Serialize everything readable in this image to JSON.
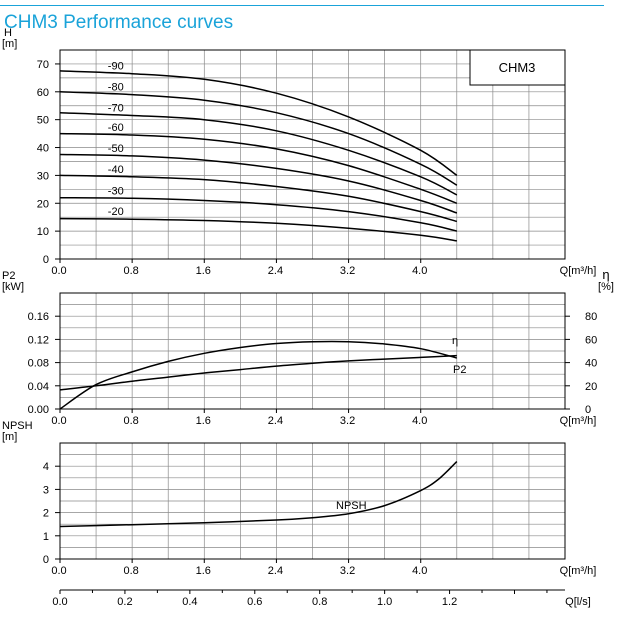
{
  "page": {
    "title": "CHM3 Performance curves",
    "model_box": "CHM3",
    "accent_color": "#1aa3d9"
  },
  "chart_data": [
    {
      "type": "line",
      "name": "head",
      "ylabel": "H",
      "yunit": "[m]",
      "xlabel": "Q[m³/h]",
      "xlim": [
        0,
        5.6
      ],
      "ylim": [
        0,
        75
      ],
      "x_ticks": [
        0.0,
        0.8,
        1.6,
        2.4,
        3.2,
        4.0
      ],
      "y_ticks": [
        0,
        10,
        20,
        30,
        40,
        50,
        60,
        70
      ],
      "grid": true,
      "legend": "top-right box",
      "series": [
        {
          "name": "-90",
          "points": [
            [
              0,
              67.5
            ],
            [
              0.8,
              66.5
            ],
            [
              1.6,
              64.5
            ],
            [
              2.4,
              59.5
            ],
            [
              3.2,
              51
            ],
            [
              4.0,
              39
            ],
            [
              4.4,
              30
            ]
          ]
        },
        {
          "name": "-80",
          "points": [
            [
              0,
              60
            ],
            [
              0.8,
              59
            ],
            [
              1.6,
              57
            ],
            [
              2.4,
              52.5
            ],
            [
              3.2,
              45
            ],
            [
              4.0,
              34
            ],
            [
              4.4,
              26.5
            ]
          ]
        },
        {
          "name": "-70",
          "points": [
            [
              0,
              52.5
            ],
            [
              0.8,
              51.5
            ],
            [
              1.6,
              50
            ],
            [
              2.4,
              46
            ],
            [
              3.2,
              39
            ],
            [
              4.0,
              29.5
            ],
            [
              4.4,
              23
            ]
          ]
        },
        {
          "name": "-60",
          "points": [
            [
              0,
              45
            ],
            [
              0.8,
              44.5
            ],
            [
              1.6,
              43
            ],
            [
              2.4,
              39.5
            ],
            [
              3.2,
              33.5
            ],
            [
              4.0,
              25
            ],
            [
              4.4,
              20
            ]
          ]
        },
        {
          "name": "-50",
          "points": [
            [
              0,
              37.5
            ],
            [
              0.8,
              37
            ],
            [
              1.6,
              35.5
            ],
            [
              2.4,
              32.5
            ],
            [
              3.2,
              28
            ],
            [
              4.0,
              21
            ],
            [
              4.4,
              16.5
            ]
          ]
        },
        {
          "name": "-40",
          "points": [
            [
              0,
              30
            ],
            [
              0.8,
              29.5
            ],
            [
              1.6,
              28.5
            ],
            [
              2.4,
              26
            ],
            [
              3.2,
              22.5
            ],
            [
              4.0,
              17
            ],
            [
              4.4,
              13.5
            ]
          ]
        },
        {
          "name": "-30",
          "points": [
            [
              0,
              22
            ],
            [
              0.8,
              21.8
            ],
            [
              1.6,
              21
            ],
            [
              2.4,
              19.5
            ],
            [
              3.2,
              17
            ],
            [
              4.0,
              13
            ],
            [
              4.4,
              10
            ]
          ]
        },
        {
          "name": "-20",
          "points": [
            [
              0,
              14.5
            ],
            [
              0.8,
              14.3
            ],
            [
              1.6,
              13.8
            ],
            [
              2.4,
              12.8
            ],
            [
              3.2,
              11
            ],
            [
              4.0,
              8.5
            ],
            [
              4.4,
              6.5
            ]
          ]
        }
      ]
    },
    {
      "type": "line",
      "name": "power-efficiency",
      "ylabel": "P2",
      "yunit": "[kW]",
      "y2label": "η",
      "y2unit": "[%]",
      "xlabel": "Q[m³/h]",
      "xlim": [
        0,
        5.6
      ],
      "ylim": [
        0,
        0.2
      ],
      "y2lim": [
        0,
        100
      ],
      "x_ticks": [
        0.0,
        0.8,
        1.6,
        2.4,
        3.2,
        4.0
      ],
      "y_ticks": [
        0.0,
        0.04,
        0.08,
        0.12,
        0.16
      ],
      "y_tick_labels": [
        "0.00",
        "0.04",
        "0.08",
        "0.12",
        "0.16"
      ],
      "y2_ticks": [
        0,
        20,
        40,
        60,
        80
      ],
      "grid": true,
      "series": [
        {
          "name": "η",
          "axis": "right",
          "points": [
            [
              0,
              0
            ],
            [
              0.4,
              21
            ],
            [
              0.8,
              32
            ],
            [
              1.2,
              41
            ],
            [
              1.6,
              48
            ],
            [
              2.0,
              53
            ],
            [
              2.4,
              56.5
            ],
            [
              2.8,
              58
            ],
            [
              3.2,
              58
            ],
            [
              3.6,
              56
            ],
            [
              4.0,
              52
            ],
            [
              4.4,
              44
            ]
          ]
        },
        {
          "name": "P2",
          "axis": "left",
          "points": [
            [
              0,
              0.033
            ],
            [
              0.4,
              0.04
            ],
            [
              0.8,
              0.048
            ],
            [
              1.2,
              0.055
            ],
            [
              1.6,
              0.062
            ],
            [
              2.0,
              0.068
            ],
            [
              2.4,
              0.074
            ],
            [
              2.8,
              0.079
            ],
            [
              3.2,
              0.083
            ],
            [
              3.6,
              0.086
            ],
            [
              4.0,
              0.089
            ],
            [
              4.4,
              0.092
            ]
          ]
        }
      ]
    },
    {
      "type": "line",
      "name": "npsh",
      "ylabel": "NPSH",
      "yunit": "[m]",
      "xlabel": "Q[m³/h]",
      "xlim": [
        0,
        5.6
      ],
      "ylim": [
        0,
        5
      ],
      "x_ticks": [
        0.0,
        0.8,
        1.6,
        2.4,
        3.2,
        4.0
      ],
      "y_ticks": [
        0,
        1,
        2,
        3,
        4
      ],
      "grid": true,
      "series": [
        {
          "name": "NPSH",
          "points": [
            [
              0,
              1.4
            ],
            [
              0.8,
              1.48
            ],
            [
              1.6,
              1.56
            ],
            [
              2.4,
              1.68
            ],
            [
              2.8,
              1.78
            ],
            [
              3.2,
              1.95
            ],
            [
              3.6,
              2.3
            ],
            [
              4.0,
              2.95
            ],
            [
              4.2,
              3.45
            ],
            [
              4.4,
              4.2
            ]
          ]
        }
      ]
    },
    {
      "type": "axis",
      "name": "secondary-flow-axis",
      "xlabel": "Q[l/s]",
      "xlim": [
        0,
        1.5556
      ],
      "x_ticks": [
        0.0,
        0.2,
        0.4,
        0.6,
        0.8,
        1.0,
        1.2
      ]
    }
  ]
}
